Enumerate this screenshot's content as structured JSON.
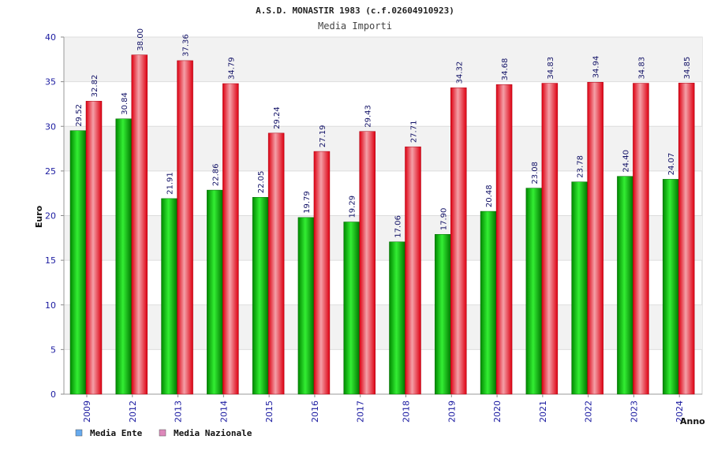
{
  "chart_data": {
    "type": "bar",
    "title": "A.S.D. MONASTIR 1983 (c.f.02604910923)",
    "subtitle": "Media Importi",
    "xlabel": "Anno",
    "ylabel": "Euro",
    "ylim": [
      0,
      40
    ],
    "yticks": [
      0,
      5,
      10,
      15,
      20,
      25,
      30,
      35,
      40
    ],
    "grid": true,
    "legend_position": "bottom-left",
    "categories": [
      "2009",
      "2012",
      "2013",
      "2014",
      "2015",
      "2016",
      "2017",
      "2018",
      "2019",
      "2020",
      "2021",
      "2022",
      "2023",
      "2024"
    ],
    "series": [
      {
        "name": "Media Ente",
        "values": [
          29.52,
          30.84,
          21.91,
          22.86,
          22.05,
          19.79,
          19.29,
          17.06,
          17.9,
          20.48,
          23.08,
          23.78,
          24.4,
          24.07
        ],
        "labels": [
          "29.52",
          "30.84",
          "21.91",
          "22.86",
          "22.05",
          "19.79",
          "19.29",
          "17.06",
          "17.90",
          "20.48",
          "23.08",
          "23.78",
          "24.40",
          "24.07"
        ],
        "bar_color": "#00cc00",
        "legend_color": "#66aaee"
      },
      {
        "name": "Media Nazionale",
        "values": [
          32.82,
          38.0,
          37.36,
          34.79,
          29.24,
          27.19,
          29.43,
          27.71,
          34.32,
          34.68,
          34.83,
          34.94,
          34.83,
          34.85
        ],
        "labels": [
          "32.82",
          "38.00",
          "37.36",
          "34.79",
          "29.24",
          "27.19",
          "29.43",
          "27.71",
          "34.32",
          "34.68",
          "34.83",
          "34.94",
          "34.83",
          "34.85"
        ],
        "bar_color": "#ee1122",
        "legend_color": "#dd88bb"
      }
    ]
  }
}
